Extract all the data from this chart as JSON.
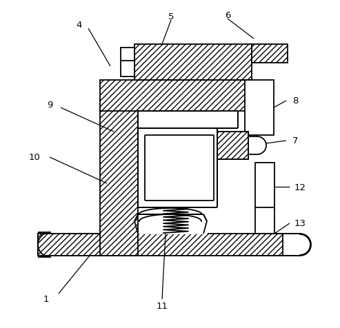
{
  "bg_color": "#ffffff",
  "line_color": "#000000",
  "lw": 1.3,
  "hatch": "////",
  "label_fs": 9.5
}
